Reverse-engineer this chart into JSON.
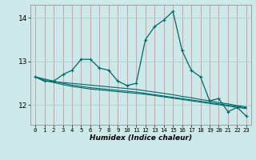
{
  "xlabel": "Humidex (Indice chaleur)",
  "background_color": "#cce8e8",
  "grid_color_x": "#e08080",
  "grid_color_y": "#a0cccc",
  "line_color": "#006868",
  "x_values": [
    0,
    1,
    2,
    3,
    4,
    5,
    6,
    7,
    8,
    9,
    10,
    11,
    12,
    13,
    14,
    15,
    16,
    17,
    18,
    19,
    20,
    21,
    22,
    23
  ],
  "main_line": [
    12.65,
    12.55,
    12.55,
    12.7,
    12.8,
    13.05,
    13.05,
    12.85,
    12.8,
    12.55,
    12.45,
    12.5,
    13.5,
    13.8,
    13.95,
    14.15,
    13.25,
    12.8,
    12.65,
    12.1,
    12.15,
    11.85,
    11.95,
    11.75
  ],
  "line2": [
    12.65,
    12.55,
    12.54,
    12.52,
    12.5,
    12.48,
    12.46,
    12.44,
    12.42,
    12.4,
    12.38,
    12.36,
    12.33,
    12.3,
    12.27,
    12.24,
    12.2,
    12.17,
    12.13,
    12.1,
    12.06,
    12.03,
    11.99,
    11.96
  ],
  "line3": [
    12.65,
    12.57,
    12.52,
    12.47,
    12.43,
    12.4,
    12.37,
    12.35,
    12.33,
    12.31,
    12.29,
    12.27,
    12.25,
    12.22,
    12.19,
    12.16,
    12.13,
    12.1,
    12.07,
    12.04,
    12.01,
    11.98,
    11.95,
    11.92
  ],
  "line4": [
    12.65,
    12.6,
    12.55,
    12.5,
    12.46,
    12.43,
    12.4,
    12.38,
    12.36,
    12.34,
    12.32,
    12.3,
    12.27,
    12.24,
    12.21,
    12.18,
    12.15,
    12.12,
    12.09,
    12.06,
    12.03,
    12.0,
    11.97,
    11.94
  ],
  "ylim": [
    11.55,
    14.3
  ],
  "yticks": [
    12,
    13,
    14
  ],
  "xlim": [
    -0.5,
    23.5
  ],
  "marker": "+"
}
